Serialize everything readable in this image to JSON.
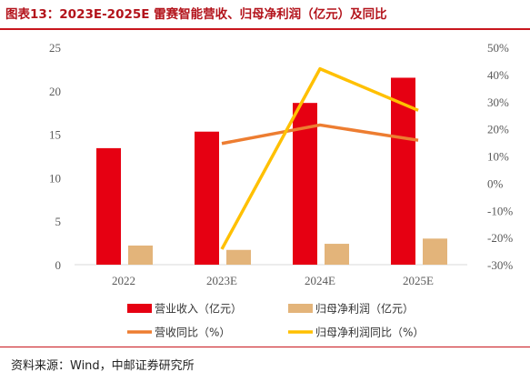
{
  "title": "图表13：2023E-2025E 雷赛智能营收、归母净利润（亿元）及同比",
  "source": "资料来源：Wind，中邮证券研究所",
  "colors": {
    "title": "#b3131b",
    "rule": "#c8161d",
    "revenue_bar": "#e60012",
    "profit_bar": "#e3b47a",
    "revenue_yoy_line": "#ed7d31",
    "profit_yoy_line": "#ffc000",
    "axis": "#d9d9d9",
    "tick_text": "#595959"
  },
  "chart_data": {
    "type": "bar",
    "categories": [
      "2022",
      "2023E",
      "2024E",
      "2025E"
    ],
    "series": [
      {
        "name": "营业收入（亿元）",
        "kind": "bar",
        "axis": "left",
        "values": [
          13.4,
          15.3,
          18.6,
          21.5
        ]
      },
      {
        "name": "归母净利润（亿元）",
        "kind": "bar",
        "axis": "left",
        "values": [
          2.2,
          1.7,
          2.4,
          3.0
        ]
      },
      {
        "name": "营收同比（%）",
        "kind": "line",
        "axis": "right",
        "values": [
          null,
          14.6,
          21.4,
          15.8
        ]
      },
      {
        "name": "归母净利润同比（%）",
        "kind": "line",
        "axis": "right",
        "values": [
          null,
          -24.3,
          42.1,
          26.8
        ]
      }
    ],
    "y_left": {
      "min": 0,
      "max": 25,
      "ticks": [
        0,
        5,
        10,
        15,
        20,
        25
      ]
    },
    "y_right": {
      "min": -30,
      "max": 50,
      "ticks": [
        -30,
        -20,
        -10,
        0,
        10,
        20,
        30,
        40,
        50
      ],
      "unit": "%"
    },
    "legend": {
      "position": "bottom",
      "entries": [
        "营业收入（亿元）",
        "归母净利润（亿元）",
        "营收同比（%）",
        "归母净利润同比（%）"
      ]
    },
    "grid": false
  }
}
